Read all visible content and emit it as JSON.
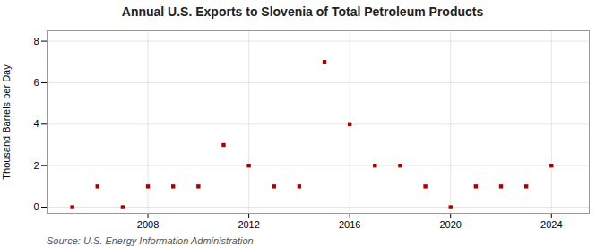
{
  "chart_data": {
    "type": "scatter",
    "title": "Annual U.S. Exports to Slovenia of Total Petroleum Products",
    "ylabel": "Thousand Barrels per Day",
    "source": "Source: U.S. Energy Information Administration",
    "x": [
      2005,
      2006,
      2007,
      2008,
      2009,
      2010,
      2011,
      2012,
      2013,
      2014,
      2015,
      2016,
      2017,
      2018,
      2019,
      2020,
      2021,
      2022,
      2023,
      2024
    ],
    "values": [
      0.0,
      1.0,
      0.0,
      1.0,
      1.0,
      1.0,
      3.0,
      2.0,
      1.0,
      1.0,
      7.0,
      4.0,
      2.0,
      2.0,
      1.0,
      0.0,
      1.0,
      1.0,
      1.0,
      2.0
    ],
    "color": "#aa0000",
    "marker": "square",
    "xlim": [
      2004.0,
      2025.5
    ],
    "xticks": [
      2008,
      2012,
      2016,
      2020,
      2024
    ],
    "ylim": [
      -0.3,
      8.5
    ],
    "yticks": [
      0,
      2,
      4,
      6,
      8
    ],
    "grid": true
  }
}
